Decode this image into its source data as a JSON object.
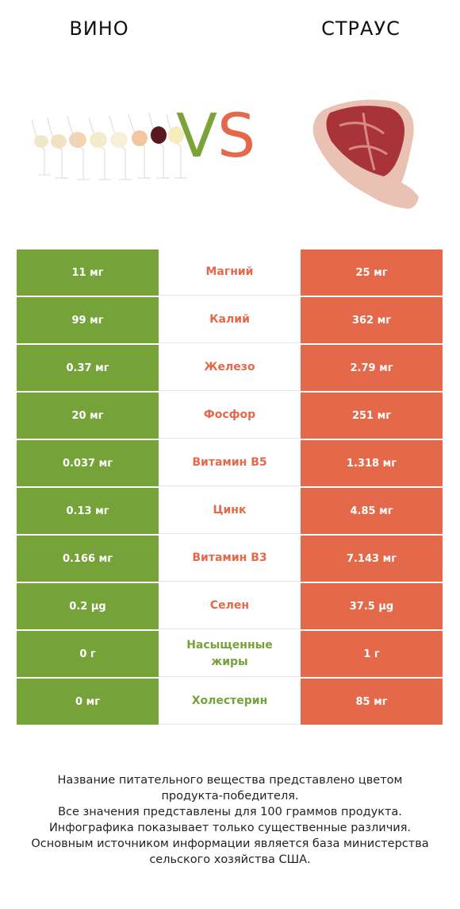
{
  "header": {
    "left_title": "ВИНО",
    "right_title": "СТРАУС",
    "vs_v": "V",
    "vs_s": "S"
  },
  "colors": {
    "left_accent": "#76a23a",
    "right_accent": "#e4694a"
  },
  "rows": [
    {
      "left": "11 мг",
      "label": "Магний",
      "right": "25 мг",
      "winner": "right"
    },
    {
      "left": "99 мг",
      "label": "Калий",
      "right": "362 мг",
      "winner": "right"
    },
    {
      "left": "0.37 мг",
      "label": "Железо",
      "right": "2.79 мг",
      "winner": "right"
    },
    {
      "left": "20 мг",
      "label": "Фосфор",
      "right": "251 мг",
      "winner": "right"
    },
    {
      "left": "0.037 мг",
      "label": "Витамин B5",
      "right": "1.318 мг",
      "winner": "right"
    },
    {
      "left": "0.13 мг",
      "label": "Цинк",
      "right": "4.85 мг",
      "winner": "right"
    },
    {
      "left": "0.166 мг",
      "label": "Витамин B3",
      "right": "7.143 мг",
      "winner": "right"
    },
    {
      "left": "0.2 µg",
      "label": "Селен",
      "right": "37.5 µg",
      "winner": "right"
    },
    {
      "left": "0 г",
      "label": "Насыщенные жиры",
      "right": "1 г",
      "winner": "left"
    },
    {
      "left": "0 мг",
      "label": "Холестерин",
      "right": "85 мг",
      "winner": "left"
    }
  ],
  "footer": {
    "line1": "Название питательного вещества представлено цветом",
    "line2": "продукта-победителя.",
    "line3": "Все значения представлены для 100 граммов продукта.",
    "line4": "Инфографика показывает только существенные различия.",
    "line5": "Основным источником информации является база министерства",
    "line6": "сельского хозяйства США."
  }
}
